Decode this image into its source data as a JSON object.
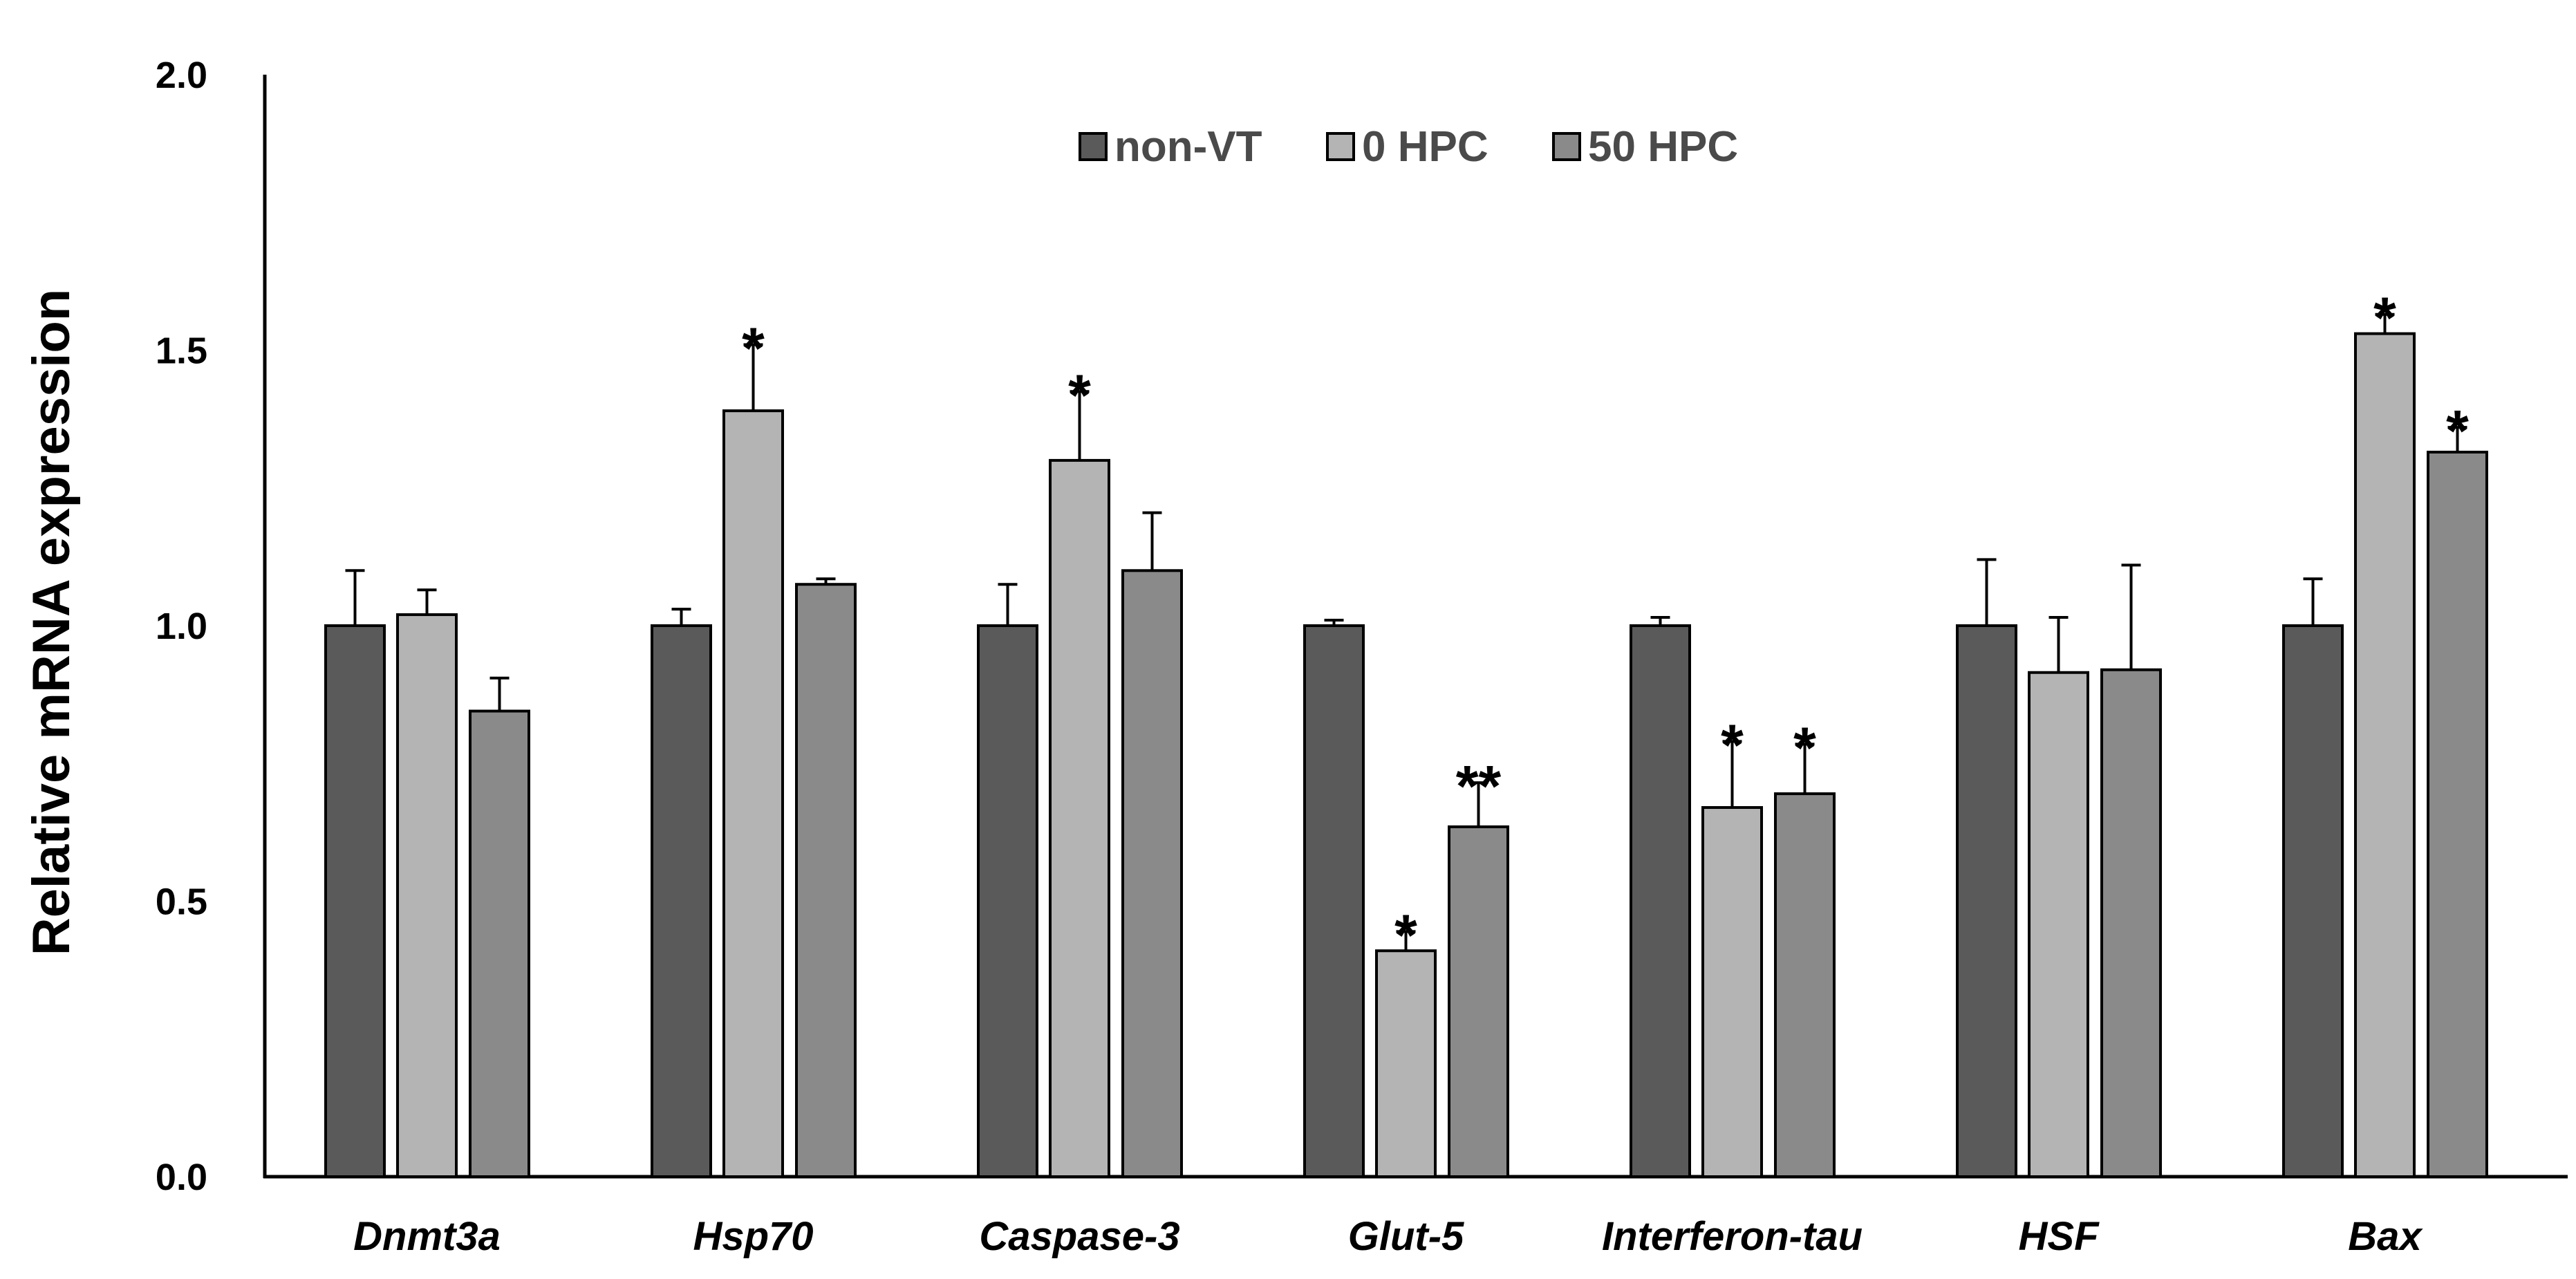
{
  "chart_data": {
    "type": "bar",
    "title": "",
    "xlabel": "",
    "ylabel": "Relative mRNA expression",
    "ylim": [
      0,
      2.0
    ],
    "yticks": [
      "0.0",
      "0.5",
      "1.0",
      "1.5",
      "2.0"
    ],
    "ytick_values": [
      0,
      0.5,
      1.0,
      1.5,
      2.0
    ],
    "grid": false,
    "legend_position": "top-center",
    "categories": [
      "Dnmt3a",
      "Hsp70",
      "Caspase-3",
      "Glut-5",
      "Interferon-tau",
      "HSF",
      "Bax"
    ],
    "series": [
      {
        "name": "non-VT",
        "color": "#5a5a5a",
        "values": [
          1.0,
          1.0,
          1.0,
          1.0,
          1.0,
          1.0,
          1.0
        ],
        "errors": [
          0.1,
          0.03,
          0.075,
          0.01,
          0.015,
          0.12,
          0.085
        ],
        "significance": [
          "",
          "",
          "",
          "",
          "",
          "",
          ""
        ]
      },
      {
        "name": "0 HPC",
        "color": "#b4b4b4",
        "values": [
          1.02,
          1.39,
          1.3,
          0.41,
          0.67,
          0.915,
          1.53
        ],
        "errors": [
          0.045,
          0.12,
          0.125,
          0.035,
          0.12,
          0.1,
          0.035
        ],
        "significance": [
          "",
          "*",
          "*",
          "*",
          "*",
          "",
          "*"
        ]
      },
      {
        "name": "50 HPC",
        "color": "#8a8a8a",
        "values": [
          0.845,
          1.075,
          1.1,
          0.635,
          0.695,
          0.92,
          1.315
        ],
        "errors": [
          0.06,
          0.01,
          0.105,
          0.08,
          0.09,
          0.19,
          0.045
        ],
        "significance": [
          "",
          "",
          "",
          "**",
          "*",
          "",
          "*"
        ]
      }
    ]
  }
}
